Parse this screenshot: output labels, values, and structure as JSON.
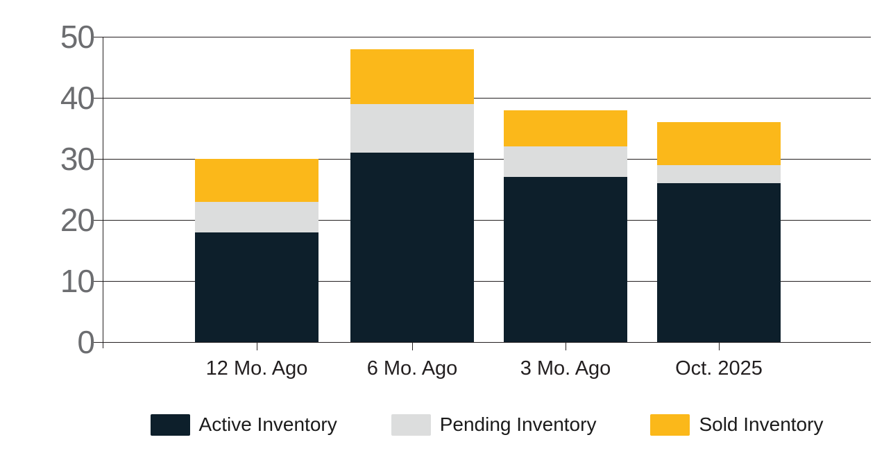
{
  "chart_data": {
    "type": "bar",
    "stacked": true,
    "title": "",
    "xlabel": "",
    "ylabel": "",
    "categories": [
      "12 Mo. Ago",
      "6 Mo. Ago",
      "3 Mo. Ago",
      "Oct. 2025"
    ],
    "series": [
      {
        "name": "Active Inventory",
        "color": "#0d1f2b",
        "values": [
          18,
          31,
          27,
          26
        ]
      },
      {
        "name": "Pending Inventory",
        "color": "#dcdddd",
        "values": [
          5,
          8,
          5,
          3
        ]
      },
      {
        "name": "Sold Inventory",
        "color": "#fbb81a",
        "values": [
          7,
          9,
          6,
          7
        ]
      }
    ],
    "totals": [
      30,
      48,
      38,
      36
    ],
    "ylim": [
      0,
      50
    ],
    "yticks": [
      0,
      10,
      20,
      30,
      40,
      50
    ],
    "grid": true,
    "legend_position": "bottom"
  },
  "colors": {
    "active": "#0d1f2b",
    "pending": "#dcdddd",
    "sold": "#fbb81a",
    "gridline": "#231f20",
    "ytick_label": "#6c6d70",
    "xtick_label": "#231f20",
    "background": "#ffffff"
  }
}
